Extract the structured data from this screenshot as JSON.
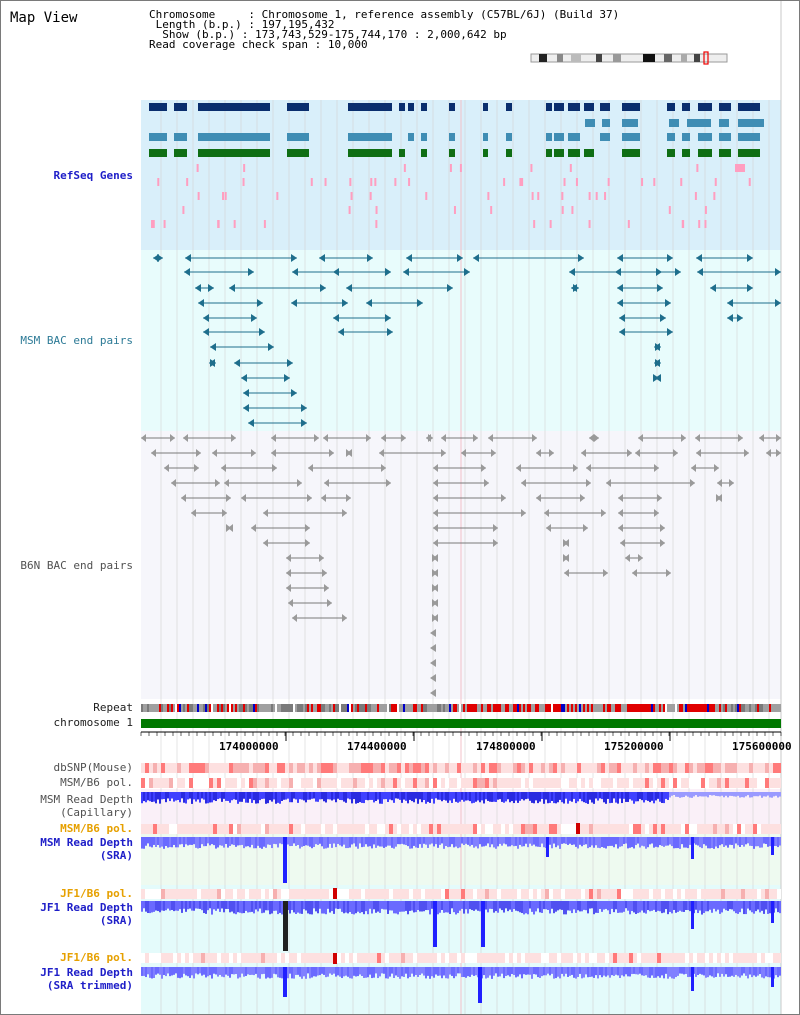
{
  "title": "Map View",
  "header": {
    "line1_label": "Chromosome    ",
    "line1_value": "Chromosome 1, reference assembly (C57BL/6J) (Build 37)",
    "line2_label": " Length (b.p.)",
    "line2_value": "197,195,432",
    "line3_label": "  Show (b.p.)",
    "line3_value": "173,743,529-175,744,170 : 2,000,642 bp",
    "line4_label": "Read coverage check span",
    "line4_value": "10,000"
  },
  "tracks": {
    "refseq": "RefSeq Genes",
    "msm_bac": "MSM BAC end pairs",
    "b6n_bac": "B6N BAC end pairs",
    "repeat": "Repeat",
    "chromosome": "chromosome 1",
    "dbsnp": "dbSNP(Mouse)",
    "msm_b6_pol_1": "MSM/B6 pol.",
    "msm_depth_cap_1": "MSM Read Depth",
    "msm_depth_cap_2": "(Capillary)",
    "msm_b6_pol_2": "MSM/B6 pol.",
    "msm_depth_sra_1": "MSM Read Depth",
    "msm_depth_sra_2": "(SRA)",
    "jf1_b6_pol_1": "JF1/B6 pol.",
    "jf1_depth_sra_1": "JF1 Read Depth",
    "jf1_depth_sra_2": "(SRA)",
    "jf1_b6_pol_2": "JF1/B6 pol.",
    "jf1_depth_trim_1": "JF1 Read Depth",
    "jf1_depth_trim_2": "(SRA trimmed)"
  },
  "ruler": {
    "ticks": [
      "174000000",
      "174400000",
      "174800000",
      "175200000",
      "175600000"
    ]
  },
  "colors": {
    "refseq_navy": "#0a2e6e",
    "refseq_lightblue": "#3f8db4",
    "refseq_green": "#0f6e14",
    "refseq_pink": "#ff9ec0",
    "msm_bac": "#1e6e8c",
    "b6n_bac": "#7a7a7a",
    "chromosome_bar": "#007800",
    "depth_blue": "#3232ff",
    "pol_red": "#ff6464"
  }
}
